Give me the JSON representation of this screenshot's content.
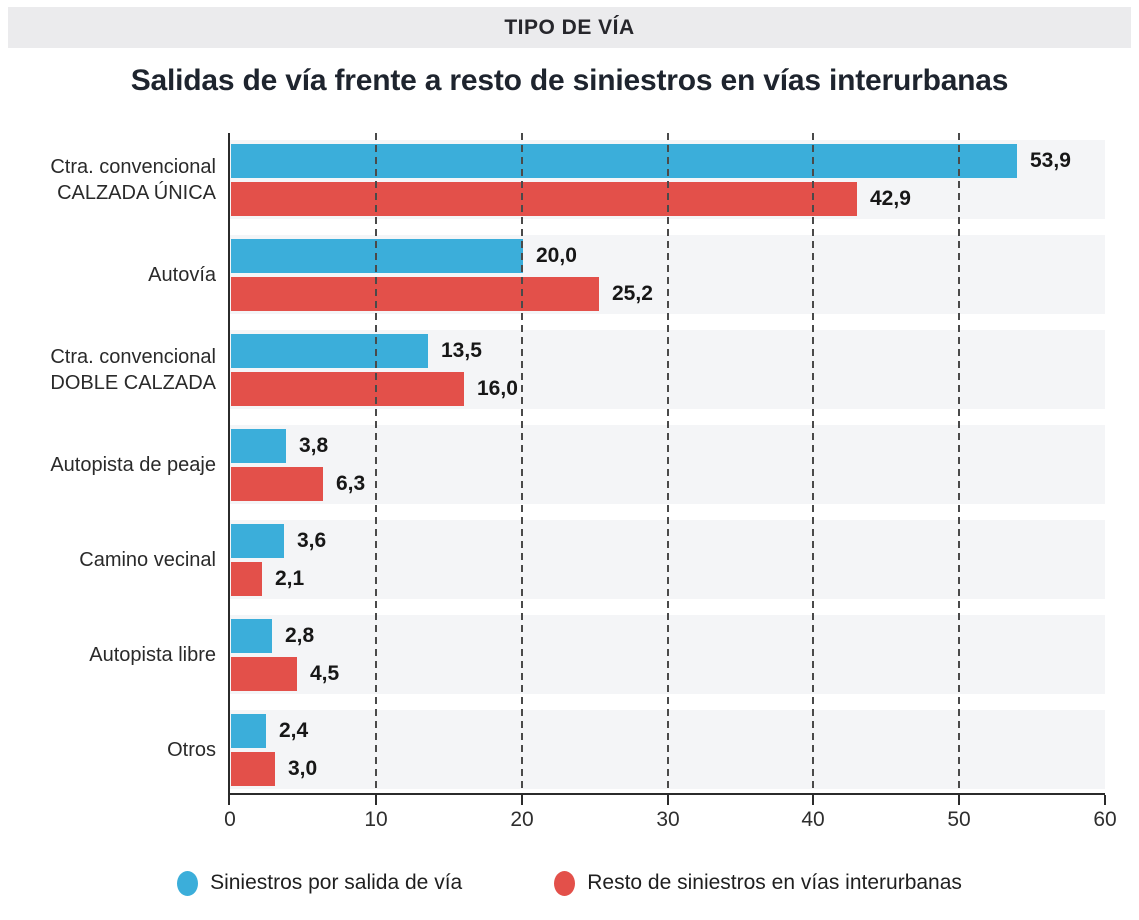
{
  "header": {
    "band_label": "TIPO DE VÍA"
  },
  "title": "Salidas de vía frente a resto de siniestros en vías interurbanas",
  "chart_data": {
    "type": "bar",
    "orientation": "horizontal",
    "title": "Salidas de vía frente a resto de siniestros en vías interurbanas",
    "categories": [
      [
        "Ctra. convencional",
        "CALZADA ÚNICA"
      ],
      [
        "Autovía"
      ],
      [
        "Ctra. convencional",
        "DOBLE CALZADA"
      ],
      [
        "Autopista de peaje"
      ],
      [
        "Camino vecinal"
      ],
      [
        "Autopista libre"
      ],
      [
        "Otros"
      ]
    ],
    "series": [
      {
        "name": "Siniestros por salida de vía",
        "color": "#3BAEDA",
        "values": [
          53.9,
          20.0,
          13.5,
          3.8,
          3.6,
          2.8,
          2.4
        ],
        "value_labels": [
          "53,9",
          "20,0",
          "13,5",
          "3,8",
          "3,6",
          "2,8",
          "2,4"
        ]
      },
      {
        "name": "Resto de siniestros en vías interurbanas",
        "color": "#E3504A",
        "values": [
          42.9,
          25.2,
          16.0,
          6.3,
          2.1,
          4.5,
          3.0
        ],
        "value_labels": [
          "42,9",
          "25,2",
          "16,0",
          "6,3",
          "2,1",
          "4,5",
          "3,0"
        ]
      }
    ],
    "x_axis": {
      "min": 0,
      "max": 60,
      "tick_labels": [
        "0",
        "10",
        "20",
        "30",
        "40",
        "50",
        "60"
      ],
      "tick_values": [
        0,
        10,
        20,
        30,
        40,
        50,
        60
      ],
      "gridline_values": [
        10,
        20,
        30,
        40,
        50
      ]
    },
    "legend_position": "bottom",
    "grid": "dashed-vertical",
    "row_stripe_color": "#F4F5F7"
  },
  "colors": {
    "series_blue": "#3BAEDA",
    "series_red": "#E3504A",
    "band_bg": "#EBEBED",
    "row_stripe": "#F4F5F7",
    "gridline": "#4A4A4A",
    "axis": "#2B2B2B",
    "title_text": "#1E242E"
  }
}
